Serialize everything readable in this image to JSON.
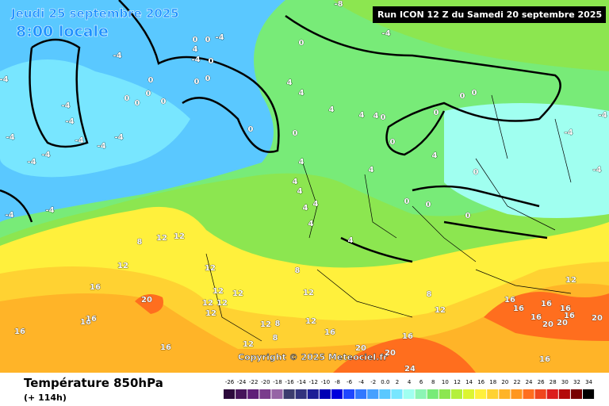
{
  "header": {
    "date": "Jeudi 25 septembre 2025",
    "time": "8:00 locale",
    "run": "Run ICON 12 Z du Samedi 20 septembre 2025"
  },
  "footer": {
    "title": "Température 850hPa",
    "subtitle": "(+ 114h)"
  },
  "copyright": "Copyright © 2025 Meteociel.fr",
  "legend": {
    "ticks": [
      -26,
      -24,
      -22,
      -20,
      -18,
      -16,
      -14,
      -12,
      -10,
      -8,
      -6,
      -4,
      -2,
      {
        "value": 0,
        "label": "0.0"
      },
      2,
      4,
      6,
      8,
      10,
      12,
      14,
      16,
      18,
      20,
      22,
      24,
      26,
      28,
      30,
      32,
      34
    ],
    "colors": [
      "#2d0a3c",
      "#46145a",
      "#5f1e78",
      "#7a3c8c",
      "#9664a5",
      "#3c3c6e",
      "#32327d",
      "#1e1e96",
      "#0000b4",
      "#0000dc",
      "#1e46ff",
      "#3278ff",
      "#46a0ff",
      "#5ac8ff",
      "#78e6ff",
      "#a0fff0",
      "#8cf5b4",
      "#78eb78",
      "#8ce650",
      "#b4f03c",
      "#dcf532",
      "#fff03c",
      "#ffd232",
      "#ffb428",
      "#ff961e",
      "#ff6e1e",
      "#f0461e",
      "#dc1e1e",
      "#b40a0a",
      "#780000",
      "#000000"
    ]
  },
  "map": {
    "labels": [
      -8,
      -4,
      -4,
      0,
      0,
      4,
      -4,
      0,
      -4,
      0,
      0,
      0,
      0,
      0,
      0,
      0,
      0,
      4,
      4,
      4,
      4,
      4,
      0,
      0,
      0,
      0,
      0,
      0,
      0,
      -4,
      -4,
      4,
      4,
      4,
      0,
      -4,
      4,
      4,
      4,
      4,
      4,
      4,
      0,
      0,
      0,
      -4,
      -4,
      -4,
      -4,
      -4,
      -4,
      -4,
      -4,
      -4,
      -4,
      -4,
      12,
      12,
      8,
      12,
      16,
      20,
      16,
      16,
      16,
      16,
      12,
      12,
      12,
      12,
      12,
      12,
      8,
      12,
      8,
      12,
      12,
      12,
      8,
      8,
      12,
      16,
      16,
      20,
      20,
      24,
      16,
      12,
      16,
      16,
      16,
      16,
      16,
      20,
      20,
      16,
      20
    ]
  }
}
